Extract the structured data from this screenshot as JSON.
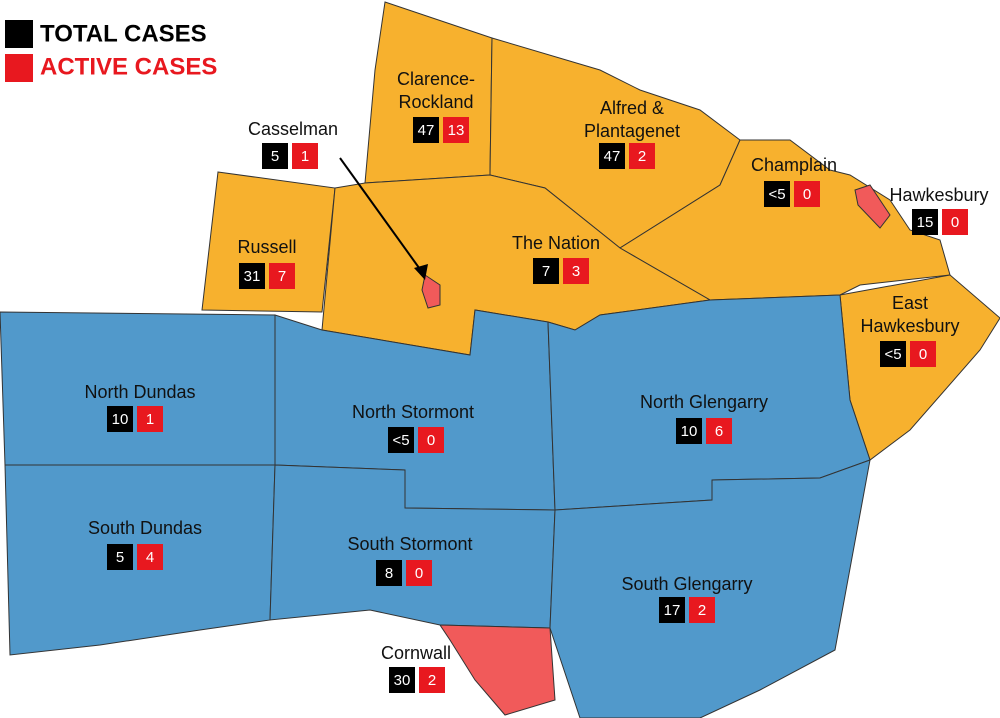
{
  "legend": {
    "total": "TOTAL CASES",
    "active": "ACTIVE CASES"
  },
  "regions": [
    {
      "name": [
        "Casselman"
      ],
      "total": 5,
      "active": 1
    },
    {
      "name": [
        "Clarence-",
        "Rockland"
      ],
      "total": 47,
      "active": 13
    },
    {
      "name": [
        "Alfred &",
        "Plantagenet"
      ],
      "total": 47,
      "active": 2
    },
    {
      "name": [
        "Champlain"
      ],
      "total": "<5",
      "active": 0
    },
    {
      "name": [
        "Hawkesbury"
      ],
      "total": 15,
      "active": 0
    },
    {
      "name": [
        "Russell"
      ],
      "total": 31,
      "active": 7
    },
    {
      "name": [
        "The Nation"
      ],
      "total": 7,
      "active": 3
    },
    {
      "name": [
        "East",
        "Hawkesbury"
      ],
      "total": "<5",
      "active": 0
    },
    {
      "name": [
        "North Dundas"
      ],
      "total": 10,
      "active": 1
    },
    {
      "name": [
        "North Stormont"
      ],
      "total": "<5",
      "active": 0
    },
    {
      "name": [
        "North Glengarry"
      ],
      "total": 10,
      "active": 6
    },
    {
      "name": [
        "South Dundas"
      ],
      "total": 5,
      "active": 4
    },
    {
      "name": [
        "South Stormont"
      ],
      "total": 8,
      "active": 0
    },
    {
      "name": [
        "South Glengarry"
      ],
      "total": 17,
      "active": 2
    },
    {
      "name": [
        "Cornwall"
      ],
      "total": 30,
      "active": 2
    }
  ]
}
